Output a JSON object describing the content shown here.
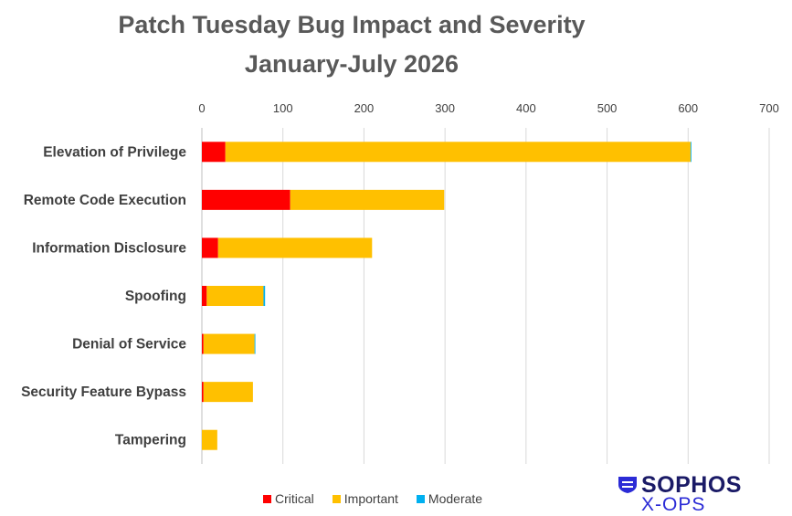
{
  "title_line1": "Patch Tuesday Bug Impact and Severity",
  "title_line2": "January-July 2026",
  "chart_data": {
    "type": "bar",
    "orientation": "horizontal",
    "stacked": true,
    "categories": [
      "Elevation of Privilege",
      "Remote Code Execution",
      "Information Disclosure",
      "Spoofing",
      "Denial of Service",
      "Security Feature Bypass",
      "Tampering"
    ],
    "series": [
      {
        "name": "Critical",
        "color": "#ff0000",
        "values": [
          29,
          109,
          20,
          6,
          2,
          2,
          0
        ]
      },
      {
        "name": "Important",
        "color": "#ffc000",
        "values": [
          574,
          190,
          190,
          70,
          63,
          61,
          19
        ]
      },
      {
        "name": "Moderate",
        "color": "#00b0f0",
        "values": [
          1,
          0,
          0,
          2,
          1,
          0,
          0
        ]
      }
    ],
    "xlim": [
      0,
      700
    ],
    "xticks": [
      "0",
      "100",
      "200",
      "300",
      "400",
      "500",
      "600",
      "700"
    ],
    "xaxis_position": "top",
    "grid": true,
    "legend_position": "bottom"
  },
  "logo": {
    "word": "SOPHOS",
    "sub": "X-OPS"
  }
}
